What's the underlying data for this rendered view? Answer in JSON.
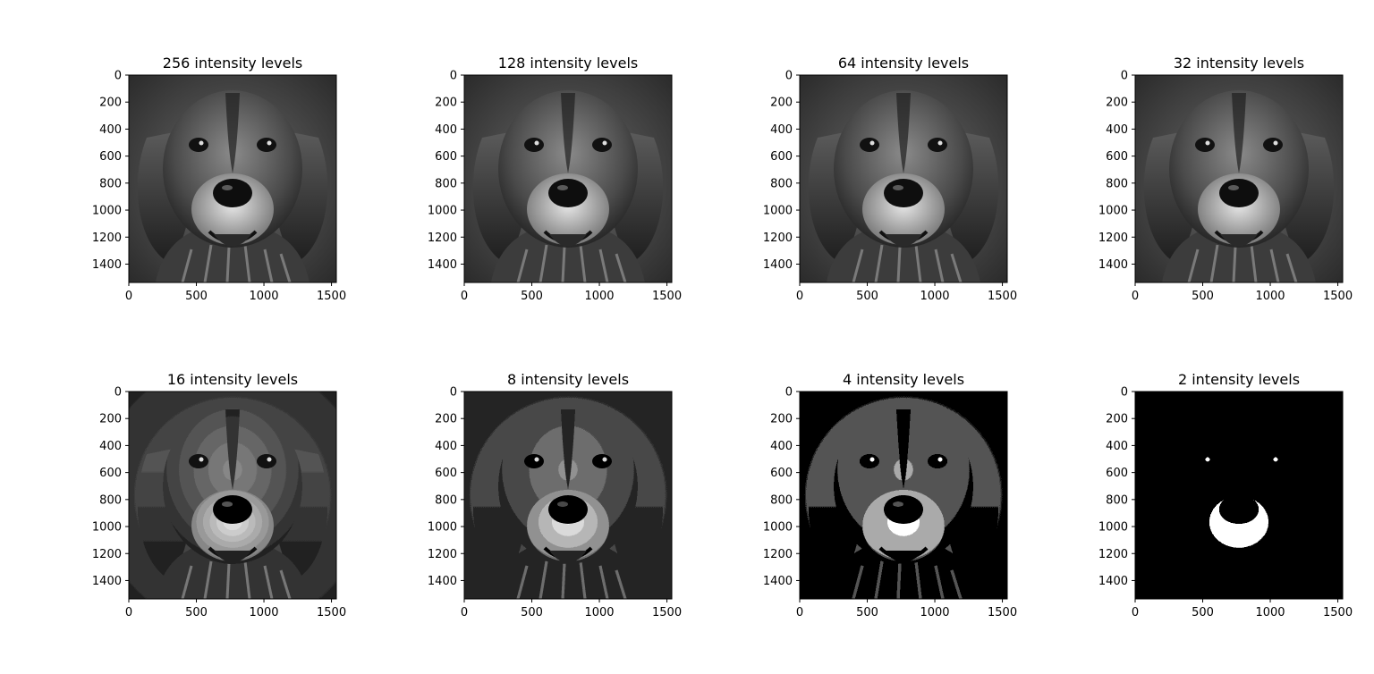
{
  "figure": {
    "panels": [
      {
        "title": "256 intensity levels",
        "levels": 256
      },
      {
        "title": "128 intensity levels",
        "levels": 128
      },
      {
        "title": "64 intensity levels",
        "levels": 64
      },
      {
        "title": "32 intensity levels",
        "levels": 32
      },
      {
        "title": "16 intensity levels",
        "levels": 16
      },
      {
        "title": "8 intensity levels",
        "levels": 8
      },
      {
        "title": "4 intensity levels",
        "levels": 4
      },
      {
        "title": "2 intensity levels",
        "levels": 2
      }
    ],
    "axes": {
      "x_ticks": [
        "0",
        "500",
        "1000",
        "1500"
      ],
      "x_tick_values": [
        0,
        500,
        1000,
        1500
      ],
      "y_ticks": [
        "0",
        "200",
        "400",
        "600",
        "800",
        "1000",
        "1200",
        "1400"
      ],
      "y_tick_values": [
        0,
        200,
        400,
        600,
        800,
        1000,
        1200,
        1400
      ],
      "xlim": [
        0,
        1536
      ],
      "ylim": [
        1536,
        0
      ]
    },
    "image_subject": "grayscale dog portrait",
    "colors": {
      "background": "#ffffff",
      "axis": "#000000"
    }
  }
}
